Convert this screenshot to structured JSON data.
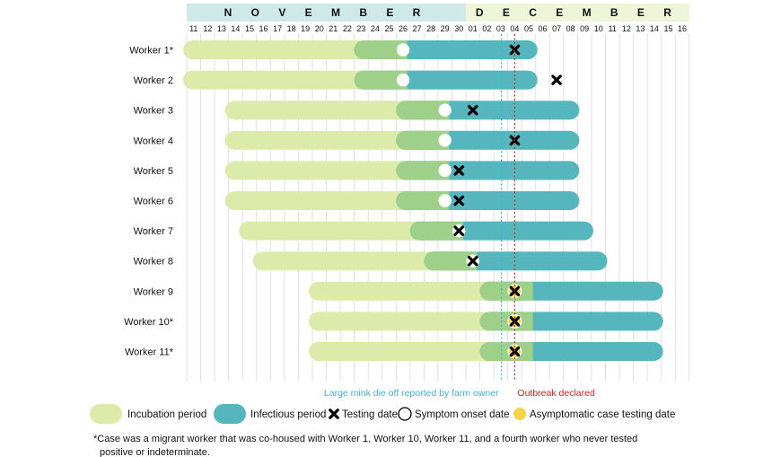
{
  "chart_data": {
    "type": "gantt",
    "month_labels": [
      "N O V E M B E R",
      "D E C E M B E R"
    ],
    "nov_days": [
      "11",
      "12",
      "13",
      "14",
      "15",
      "16",
      "17",
      "18",
      "19",
      "20",
      "21",
      "22",
      "23",
      "24",
      "25",
      "26",
      "27",
      "28",
      "29",
      "30"
    ],
    "dec_days": [
      "01",
      "02",
      "03",
      "04",
      "05",
      "06",
      "07",
      "08",
      "09",
      "10",
      "11",
      "12",
      "13",
      "14",
      "15",
      "16"
    ],
    "workers": [
      {
        "label": "Worker 1*",
        "incubation_start": "Nov 11",
        "infectious_start": "Nov 23",
        "infectious_end": "Dec 05",
        "symptom_onset": "Nov 26",
        "testing_date": "Dec 04"
      },
      {
        "label": "Worker 2",
        "incubation_start": "Nov 11",
        "infectious_start": "Nov 23",
        "infectious_end": "Dec 05",
        "symptom_onset": "Nov 26",
        "testing_date": "Dec 07"
      },
      {
        "label": "Worker 3",
        "incubation_start": "Nov 14",
        "infectious_start": "Nov 26",
        "infectious_end": "Dec 08",
        "symptom_onset": "Nov 29",
        "testing_date": "Dec 01"
      },
      {
        "label": "Worker 4",
        "incubation_start": "Nov 14",
        "infectious_start": "Nov 26",
        "infectious_end": "Dec 08",
        "symptom_onset": "Nov 29",
        "testing_date": "Dec 04"
      },
      {
        "label": "Worker 5",
        "incubation_start": "Nov 14",
        "infectious_start": "Nov 26",
        "infectious_end": "Dec 08",
        "symptom_onset": "Nov 29",
        "testing_date": "Nov 30"
      },
      {
        "label": "Worker 6",
        "incubation_start": "Nov 14",
        "infectious_start": "Nov 26",
        "infectious_end": "Dec 08",
        "symptom_onset": "Nov 29",
        "testing_date": "Nov 30"
      },
      {
        "label": "Worker 7",
        "incubation_start": "Nov 15",
        "infectious_start": "Nov 27",
        "infectious_end": "Dec 09",
        "symptom_onset": "Nov 30",
        "testing_date": "Nov 30"
      },
      {
        "label": "Worker 8",
        "incubation_start": "Nov 16",
        "infectious_start": "Nov 28",
        "infectious_end": "Dec 10",
        "symptom_onset": "Dec 01",
        "testing_date": "Dec 01"
      },
      {
        "label": "Worker 9",
        "incubation_start": "Nov 20",
        "infectious_start": "Dec 02",
        "infectious_end": "Dec 14",
        "asymptomatic_testing_date": "Dec 04",
        "testing_date": "Dec 04"
      },
      {
        "label": "Worker 10*",
        "incubation_start": "Nov 20",
        "infectious_start": "Dec 02",
        "infectious_end": "Dec 14",
        "asymptomatic_testing_date": "Dec 04",
        "testing_date": "Dec 04"
      },
      {
        "label": "Worker 11*",
        "incubation_start": "Nov 20",
        "infectious_start": "Dec 02",
        "infectious_end": "Dec 14",
        "asymptomatic_testing_date": "Dec 04",
        "testing_date": "Dec 04"
      }
    ],
    "reference_lines": [
      {
        "date": "Dec 03",
        "label": "Large mink die off reported by farm owner",
        "color": "#3fb3d9"
      },
      {
        "date": "Dec 04",
        "label": "Outbreak declared",
        "color": "#e02020"
      }
    ],
    "colors": {
      "incubation": "#dcebaa",
      "overlap": "#9fd08a",
      "infectious": "#55b6bd",
      "nov_header": "#cfe9e8",
      "dec_header": "#eef5d9",
      "grid": "#d9d9d9",
      "asymptomatic": "#f5d547"
    },
    "legend": {
      "incubation": "Incubation period",
      "infectious": "Infectious period",
      "testing": "Testing date",
      "symptom": "Symptom onset date",
      "asymptomatic": "Asymptomatic case testing date"
    },
    "footnote_line1": "*Case was a migrant worker that was co-housed with Worker 1, Worker 10, Worker 11, and a fourth worker who never tested",
    "footnote_line2": "positive or indeterminate."
  }
}
